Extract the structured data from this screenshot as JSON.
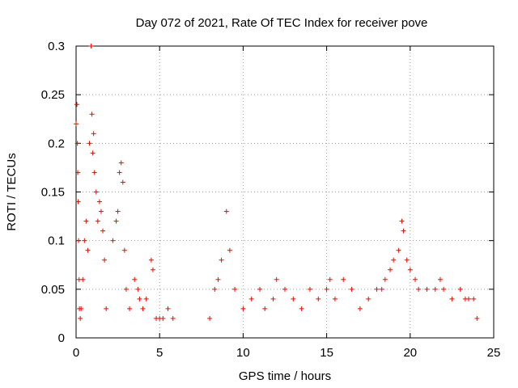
{
  "chart_data": {
    "type": "scatter",
    "title": "Day 072 of 2021, Rate Of TEC Index for receiver pove",
    "xlabel": "GPS time / hours",
    "ylabel": "ROTI / TECUs",
    "xlim": [
      0,
      25
    ],
    "ylim": [
      0,
      0.3
    ],
    "xticks": [
      "0",
      "5",
      "10",
      "15",
      "20",
      "25"
    ],
    "yticks": [
      "0",
      "0.05",
      "0.1",
      "0.15",
      "0.2",
      "0.25",
      "0.3"
    ],
    "grid": true,
    "marker": "+",
    "color": "#ff0000",
    "series": [
      {
        "x": [
          0.0,
          0.05,
          0.08,
          0.1,
          0.12,
          0.15,
          0.18,
          0.2,
          0.25,
          0.3,
          0.4,
          0.5,
          0.6,
          0.7,
          0.8,
          0.9,
          0.95,
          1.0,
          1.05,
          1.1,
          1.2,
          1.3,
          1.4,
          1.5,
          1.6,
          1.7,
          1.8,
          2.2,
          2.4,
          2.5,
          2.6,
          2.7,
          2.8,
          2.9,
          3.0,
          3.2,
          3.5,
          3.7,
          3.8,
          4.0,
          4.2,
          4.5,
          4.6,
          4.8,
          5.0,
          5.2,
          5.5,
          5.8,
          8.0,
          8.3,
          8.5,
          8.7,
          9.0,
          9.2,
          9.5,
          10.0,
          10.5,
          11.0,
          11.3,
          11.8,
          12.0,
          12.5,
          13.0,
          13.5,
          14.0,
          14.5,
          15.0,
          15.2,
          15.5,
          16.0,
          16.5,
          17.0,
          17.5,
          18.0,
          18.3,
          18.5,
          18.8,
          19.0,
          19.3,
          19.5,
          19.6,
          19.8,
          20.0,
          20.3,
          20.5,
          21.0,
          21.5,
          21.8,
          22.0,
          22.5,
          23.0,
          23.3,
          23.5,
          23.8,
          24.0
        ],
        "y": [
          0.22,
          0.24,
          0.2,
          0.17,
          0.14,
          0.1,
          0.06,
          0.03,
          0.02,
          0.03,
          0.06,
          0.1,
          0.12,
          0.09,
          0.2,
          0.3,
          0.23,
          0.19,
          0.21,
          0.17,
          0.15,
          0.12,
          0.14,
          0.13,
          0.11,
          0.08,
          0.03,
          0.1,
          0.12,
          0.13,
          0.17,
          0.18,
          0.16,
          0.09,
          0.05,
          0.03,
          0.06,
          0.05,
          0.04,
          0.03,
          0.04,
          0.08,
          0.07,
          0.02,
          0.02,
          0.02,
          0.03,
          0.02,
          0.02,
          0.05,
          0.06,
          0.08,
          0.13,
          0.09,
          0.05,
          0.03,
          0.04,
          0.05,
          0.03,
          0.04,
          0.06,
          0.05,
          0.04,
          0.03,
          0.05,
          0.04,
          0.05,
          0.06,
          0.04,
          0.06,
          0.05,
          0.03,
          0.04,
          0.05,
          0.05,
          0.06,
          0.07,
          0.08,
          0.09,
          0.12,
          0.11,
          0.08,
          0.07,
          0.06,
          0.05,
          0.05,
          0.05,
          0.06,
          0.05,
          0.04,
          0.05,
          0.04,
          0.04,
          0.04,
          0.02
        ]
      }
    ]
  }
}
